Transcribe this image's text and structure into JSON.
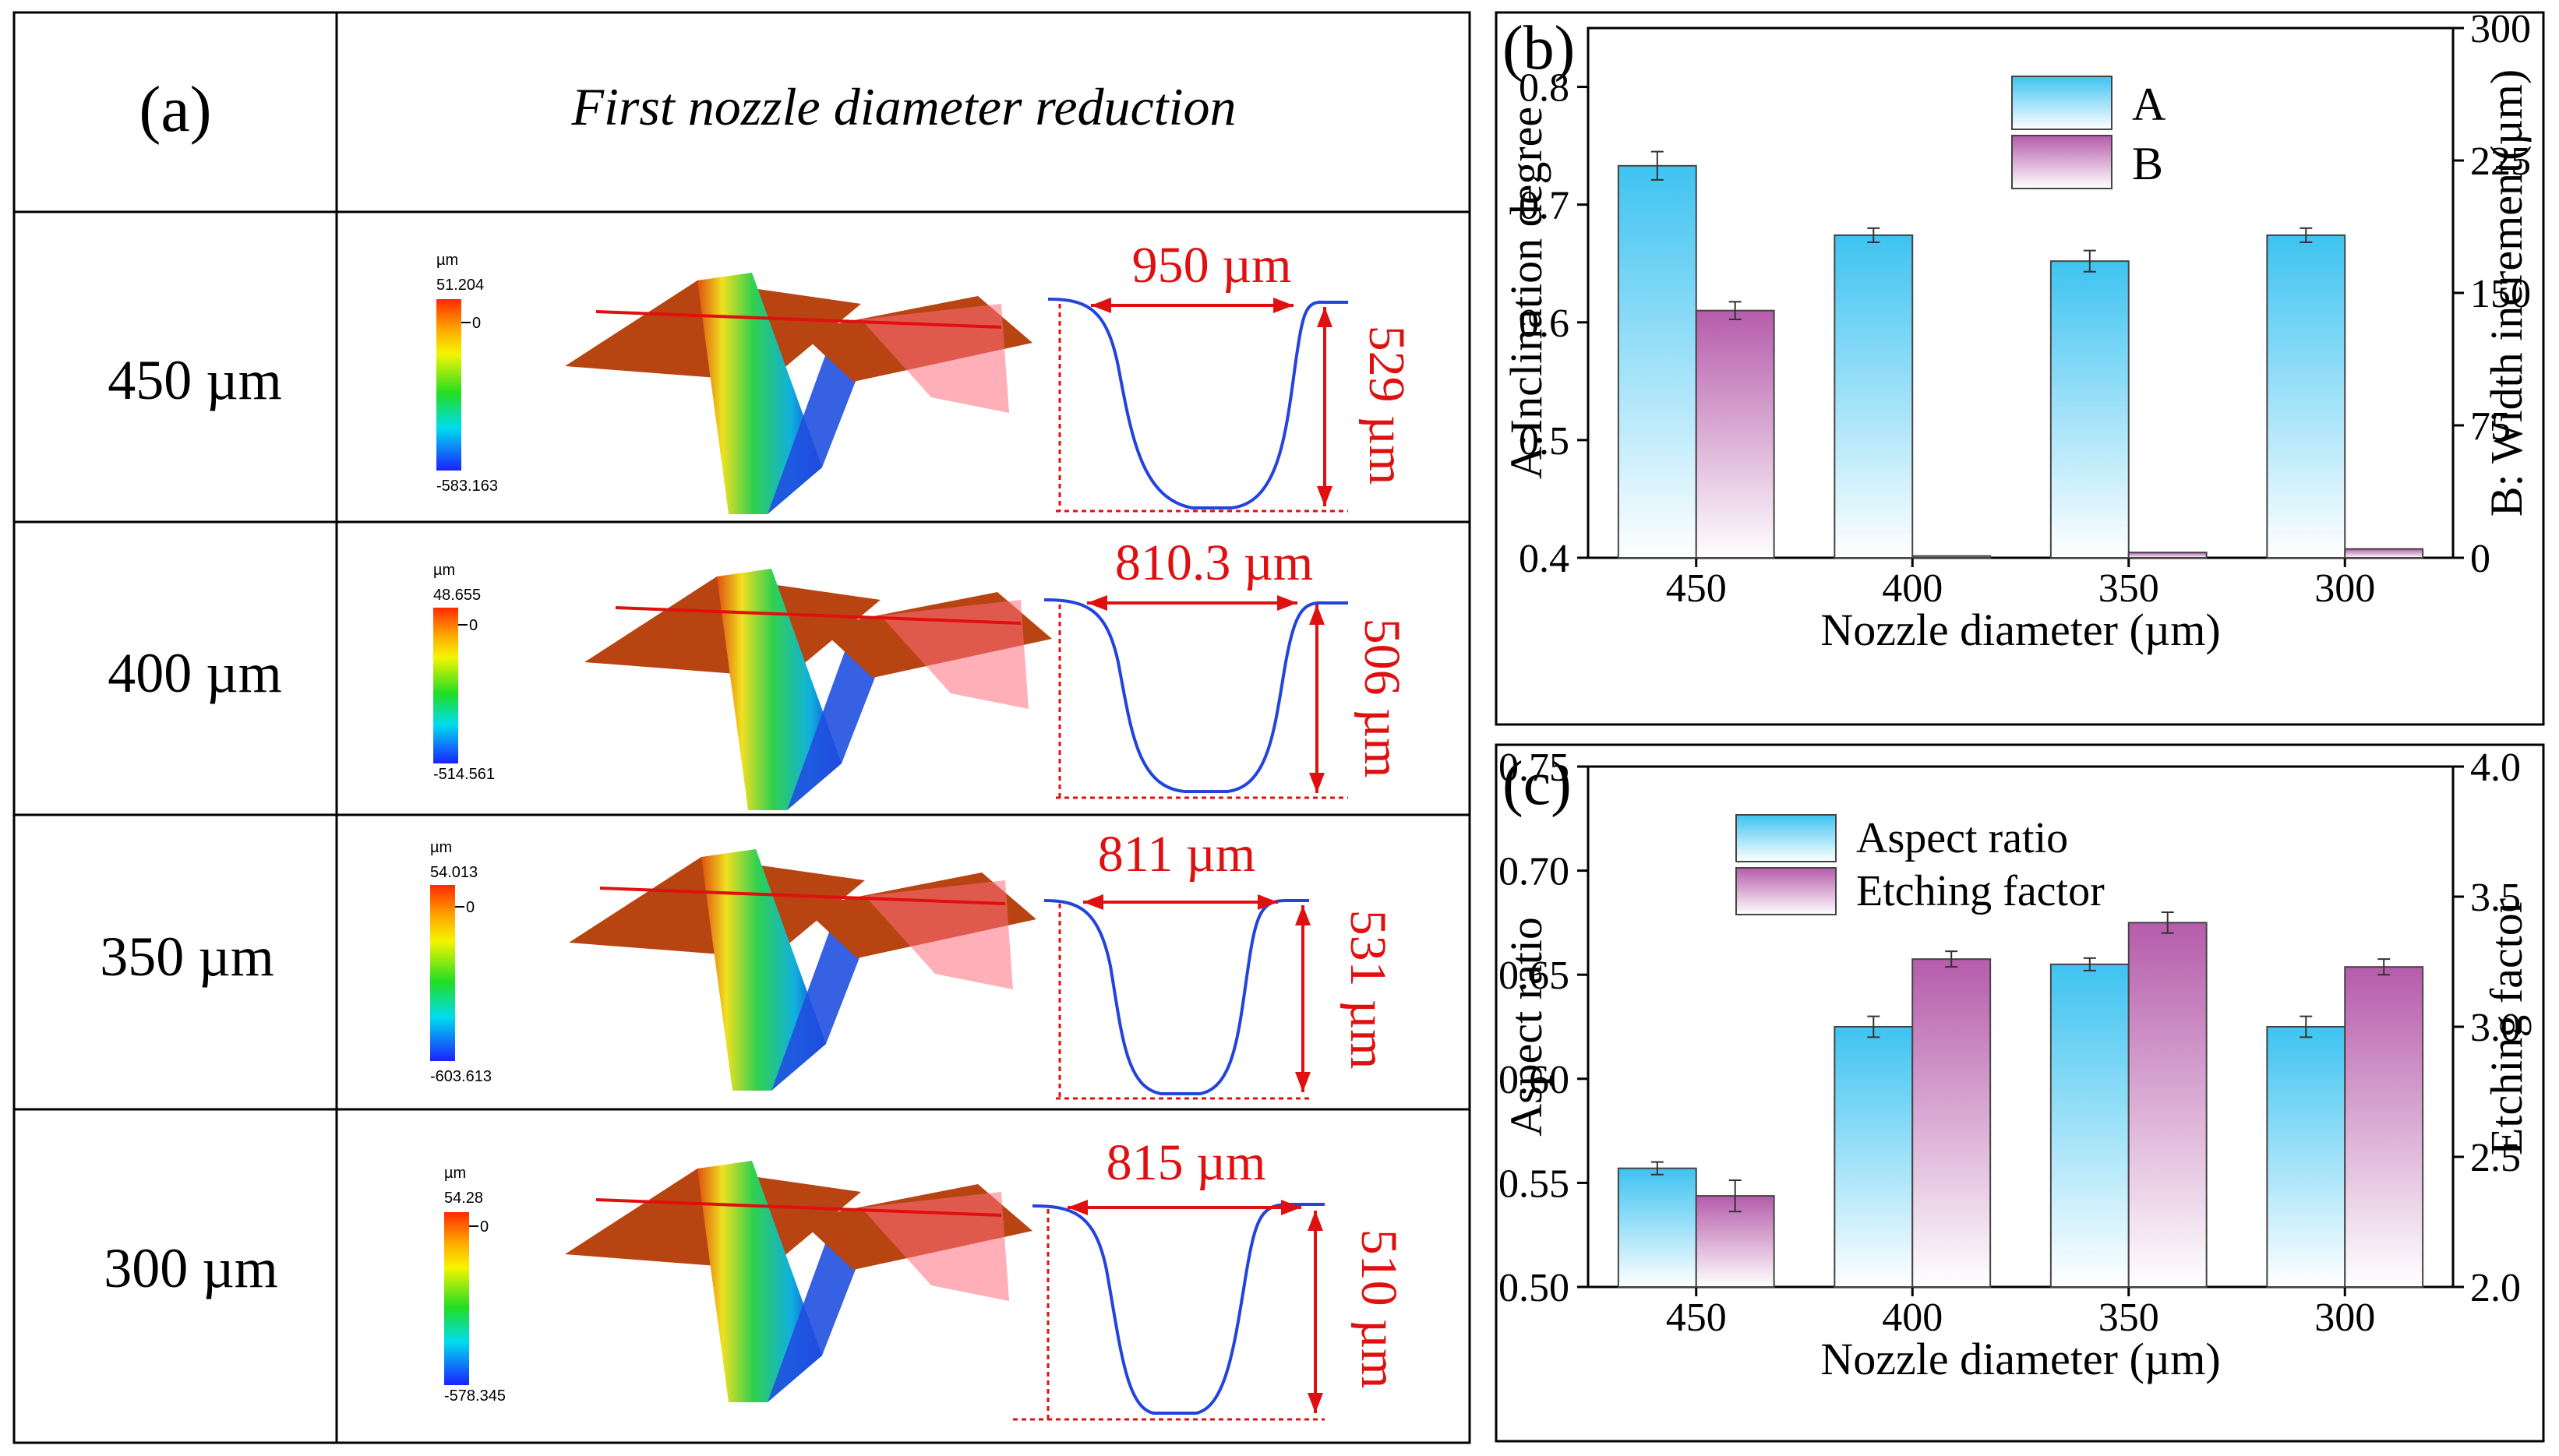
{
  "panel_a": {
    "letter": "(a)",
    "header_title": "First nozzle diameter reduction",
    "rows": [
      {
        "label": "450 µm",
        "scale_unit": "µm",
        "scale_max": "51.204",
        "scale_zero": "0",
        "scale_min": "-583.163",
        "width_label": "950 µm",
        "depth_label": "529 µm"
      },
      {
        "label": "400 µm",
        "scale_unit": "µm",
        "scale_max": "48.655",
        "scale_zero": "0",
        "scale_min": "-514.561",
        "width_label": "810.3 µm",
        "depth_label": "506 µm"
      },
      {
        "label": "350 µm",
        "scale_unit": "µm",
        "scale_max": "54.013",
        "scale_zero": "0",
        "scale_min": "-603.613",
        "width_label": "811 µm",
        "depth_label": "531 µm"
      },
      {
        "label": "300 µm",
        "scale_unit": "µm",
        "scale_max": "54.28",
        "scale_zero": "0",
        "scale_min": "-578.345",
        "width_label": "815 µm",
        "depth_label": "510 µm"
      }
    ]
  },
  "chart_data": [
    {
      "panel": "(b)",
      "type": "bar",
      "categories": [
        "450",
        "400",
        "350",
        "300"
      ],
      "xlabel": "Nozzle diameter (µm)",
      "ylabel_left": "A:Inclination degree",
      "ylabel_right": "B: Width increment(µm)",
      "ylim_left": [
        0.4,
        0.85
      ],
      "ylim_right": [
        0,
        300
      ],
      "yticks_left": [
        "0.4",
        "0.5",
        "0.6",
        "0.7",
        "0.8"
      ],
      "yticks_right": [
        "0",
        "75",
        "150",
        "225",
        "300"
      ],
      "legend_position": "top-center",
      "series": [
        {
          "name": "A",
          "axis": "left",
          "color": "#3ec3f1",
          "values": [
            0.733,
            0.674,
            0.652,
            0.674
          ],
          "errors": [
            0.012,
            0.006,
            0.009,
            0.006
          ]
        },
        {
          "name": "B",
          "axis": "right",
          "color": "#b65cab",
          "values": [
            140,
            1,
            3,
            5
          ],
          "errors": [
            5,
            0,
            0,
            0
          ]
        }
      ]
    },
    {
      "panel": "(c)",
      "type": "bar",
      "categories": [
        "450",
        "400",
        "350",
        "300"
      ],
      "xlabel": "Nozzle diameter (µm)",
      "ylabel_left": "Aspect ratio",
      "ylabel_right": "Etching factor",
      "ylim_left": [
        0.5,
        0.75
      ],
      "ylim_right": [
        2.0,
        4.0
      ],
      "yticks_left": [
        "0.50",
        "0.55",
        "0.60",
        "0.65",
        "0.70",
        "0.75"
      ],
      "yticks_right": [
        "2.0",
        "2.5",
        "3.0",
        "3.5",
        "4.0"
      ],
      "legend_position": "top-left",
      "series": [
        {
          "name": "Aspect ratio",
          "axis": "left",
          "color": "#3ec3f1",
          "values": [
            0.557,
            0.625,
            0.655,
            0.625
          ],
          "errors": [
            0.003,
            0.005,
            0.003,
            0.005
          ]
        },
        {
          "name": "Etching factor",
          "axis": "right",
          "color": "#b65cab",
          "values": [
            2.35,
            3.26,
            3.4,
            3.23
          ],
          "errors": [
            0.06,
            0.03,
            0.04,
            0.03
          ]
        }
      ]
    }
  ]
}
